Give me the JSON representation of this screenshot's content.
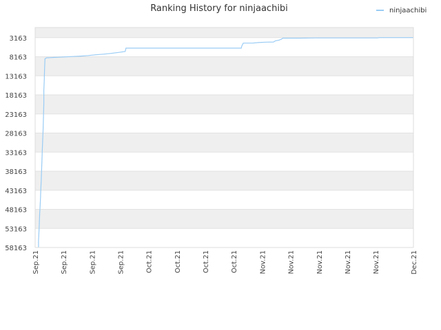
{
  "chart_data": {
    "type": "line",
    "title": "Ranking History for ninjaachibi",
    "xlabel": "",
    "ylabel": "",
    "y_reversed": true,
    "ylim": [
      58163,
      503
    ],
    "grid": true,
    "band_colors": [
      "#efefef",
      "#ffffff"
    ],
    "legend": {
      "position": "top-right",
      "label": "ninjaachibi",
      "color": "#99ccf5"
    },
    "y_ticks": [
      {
        "value": 3163,
        "label": "3163"
      },
      {
        "value": 8163,
        "label": "8163"
      },
      {
        "value": 13163,
        "label": "13163"
      },
      {
        "value": 18163,
        "label": "18163"
      },
      {
        "value": 23163,
        "label": "23163"
      },
      {
        "value": 28163,
        "label": "28163"
      },
      {
        "value": 33163,
        "label": "33163"
      },
      {
        "value": 38163,
        "label": "38163"
      },
      {
        "value": 43163,
        "label": "43163"
      },
      {
        "value": 48163,
        "label": "48163"
      },
      {
        "value": 53163,
        "label": "53163"
      },
      {
        "value": 58163,
        "label": "58163"
      }
    ],
    "x_ticks": [
      {
        "t": 0,
        "label": "Sep.21"
      },
      {
        "t": 0.075,
        "label": "Sep.21"
      },
      {
        "t": 0.15,
        "label": "Sep.21"
      },
      {
        "t": 0.225,
        "label": "Sep.21"
      },
      {
        "t": 0.3,
        "label": "Oct.21"
      },
      {
        "t": 0.375,
        "label": "Oct.21"
      },
      {
        "t": 0.45,
        "label": "Oct.21"
      },
      {
        "t": 0.525,
        "label": "Oct.21"
      },
      {
        "t": 0.6,
        "label": "Nov.21"
      },
      {
        "t": 0.675,
        "label": "Nov.21"
      },
      {
        "t": 0.75,
        "label": "Nov.21"
      },
      {
        "t": 0.825,
        "label": "Nov.21"
      },
      {
        "t": 0.9,
        "label": "Nov.21"
      },
      {
        "t": 1.0,
        "label": "Dec.21"
      }
    ],
    "series": [
      {
        "name": "ninjaachibi",
        "color": "#99ccf5",
        "points": [
          [
            0.009,
            58163
          ],
          [
            0.009,
            56400
          ],
          [
            0.01,
            54200
          ],
          [
            0.011,
            52000
          ],
          [
            0.012,
            49200
          ],
          [
            0.013,
            47800
          ],
          [
            0.014,
            45500
          ],
          [
            0.015,
            43000
          ],
          [
            0.016,
            40800
          ],
          [
            0.017,
            38200
          ],
          [
            0.018,
            35200
          ],
          [
            0.019,
            32500
          ],
          [
            0.02,
            29800
          ],
          [
            0.021,
            27600
          ],
          [
            0.022,
            23800
          ],
          [
            0.023,
            20500
          ],
          [
            0.023,
            17000
          ],
          [
            0.024,
            14500
          ],
          [
            0.025,
            11200
          ],
          [
            0.026,
            8700
          ],
          [
            0.03,
            8450
          ],
          [
            0.04,
            8400
          ],
          [
            0.05,
            8350
          ],
          [
            0.06,
            8300
          ],
          [
            0.08,
            8200
          ],
          [
            0.1,
            8100
          ],
          [
            0.12,
            8000
          ],
          [
            0.14,
            7850
          ],
          [
            0.16,
            7650
          ],
          [
            0.18,
            7500
          ],
          [
            0.2,
            7300
          ],
          [
            0.22,
            7050
          ],
          [
            0.238,
            6800
          ],
          [
            0.24,
            5900
          ],
          [
            0.4,
            5900
          ],
          [
            0.545,
            5900
          ],
          [
            0.546,
            5400
          ],
          [
            0.548,
            5000
          ],
          [
            0.55,
            4600
          ],
          [
            0.575,
            4600
          ],
          [
            0.59,
            4450
          ],
          [
            0.61,
            4350
          ],
          [
            0.63,
            4300
          ],
          [
            0.635,
            4000
          ],
          [
            0.645,
            3800
          ],
          [
            0.65,
            3600
          ],
          [
            0.655,
            3300
          ],
          [
            0.7,
            3300
          ],
          [
            0.74,
            3250
          ],
          [
            0.8,
            3250
          ],
          [
            0.86,
            3250
          ],
          [
            0.905,
            3250
          ],
          [
            0.91,
            3150
          ],
          [
            1.0,
            3150
          ]
        ]
      }
    ]
  }
}
